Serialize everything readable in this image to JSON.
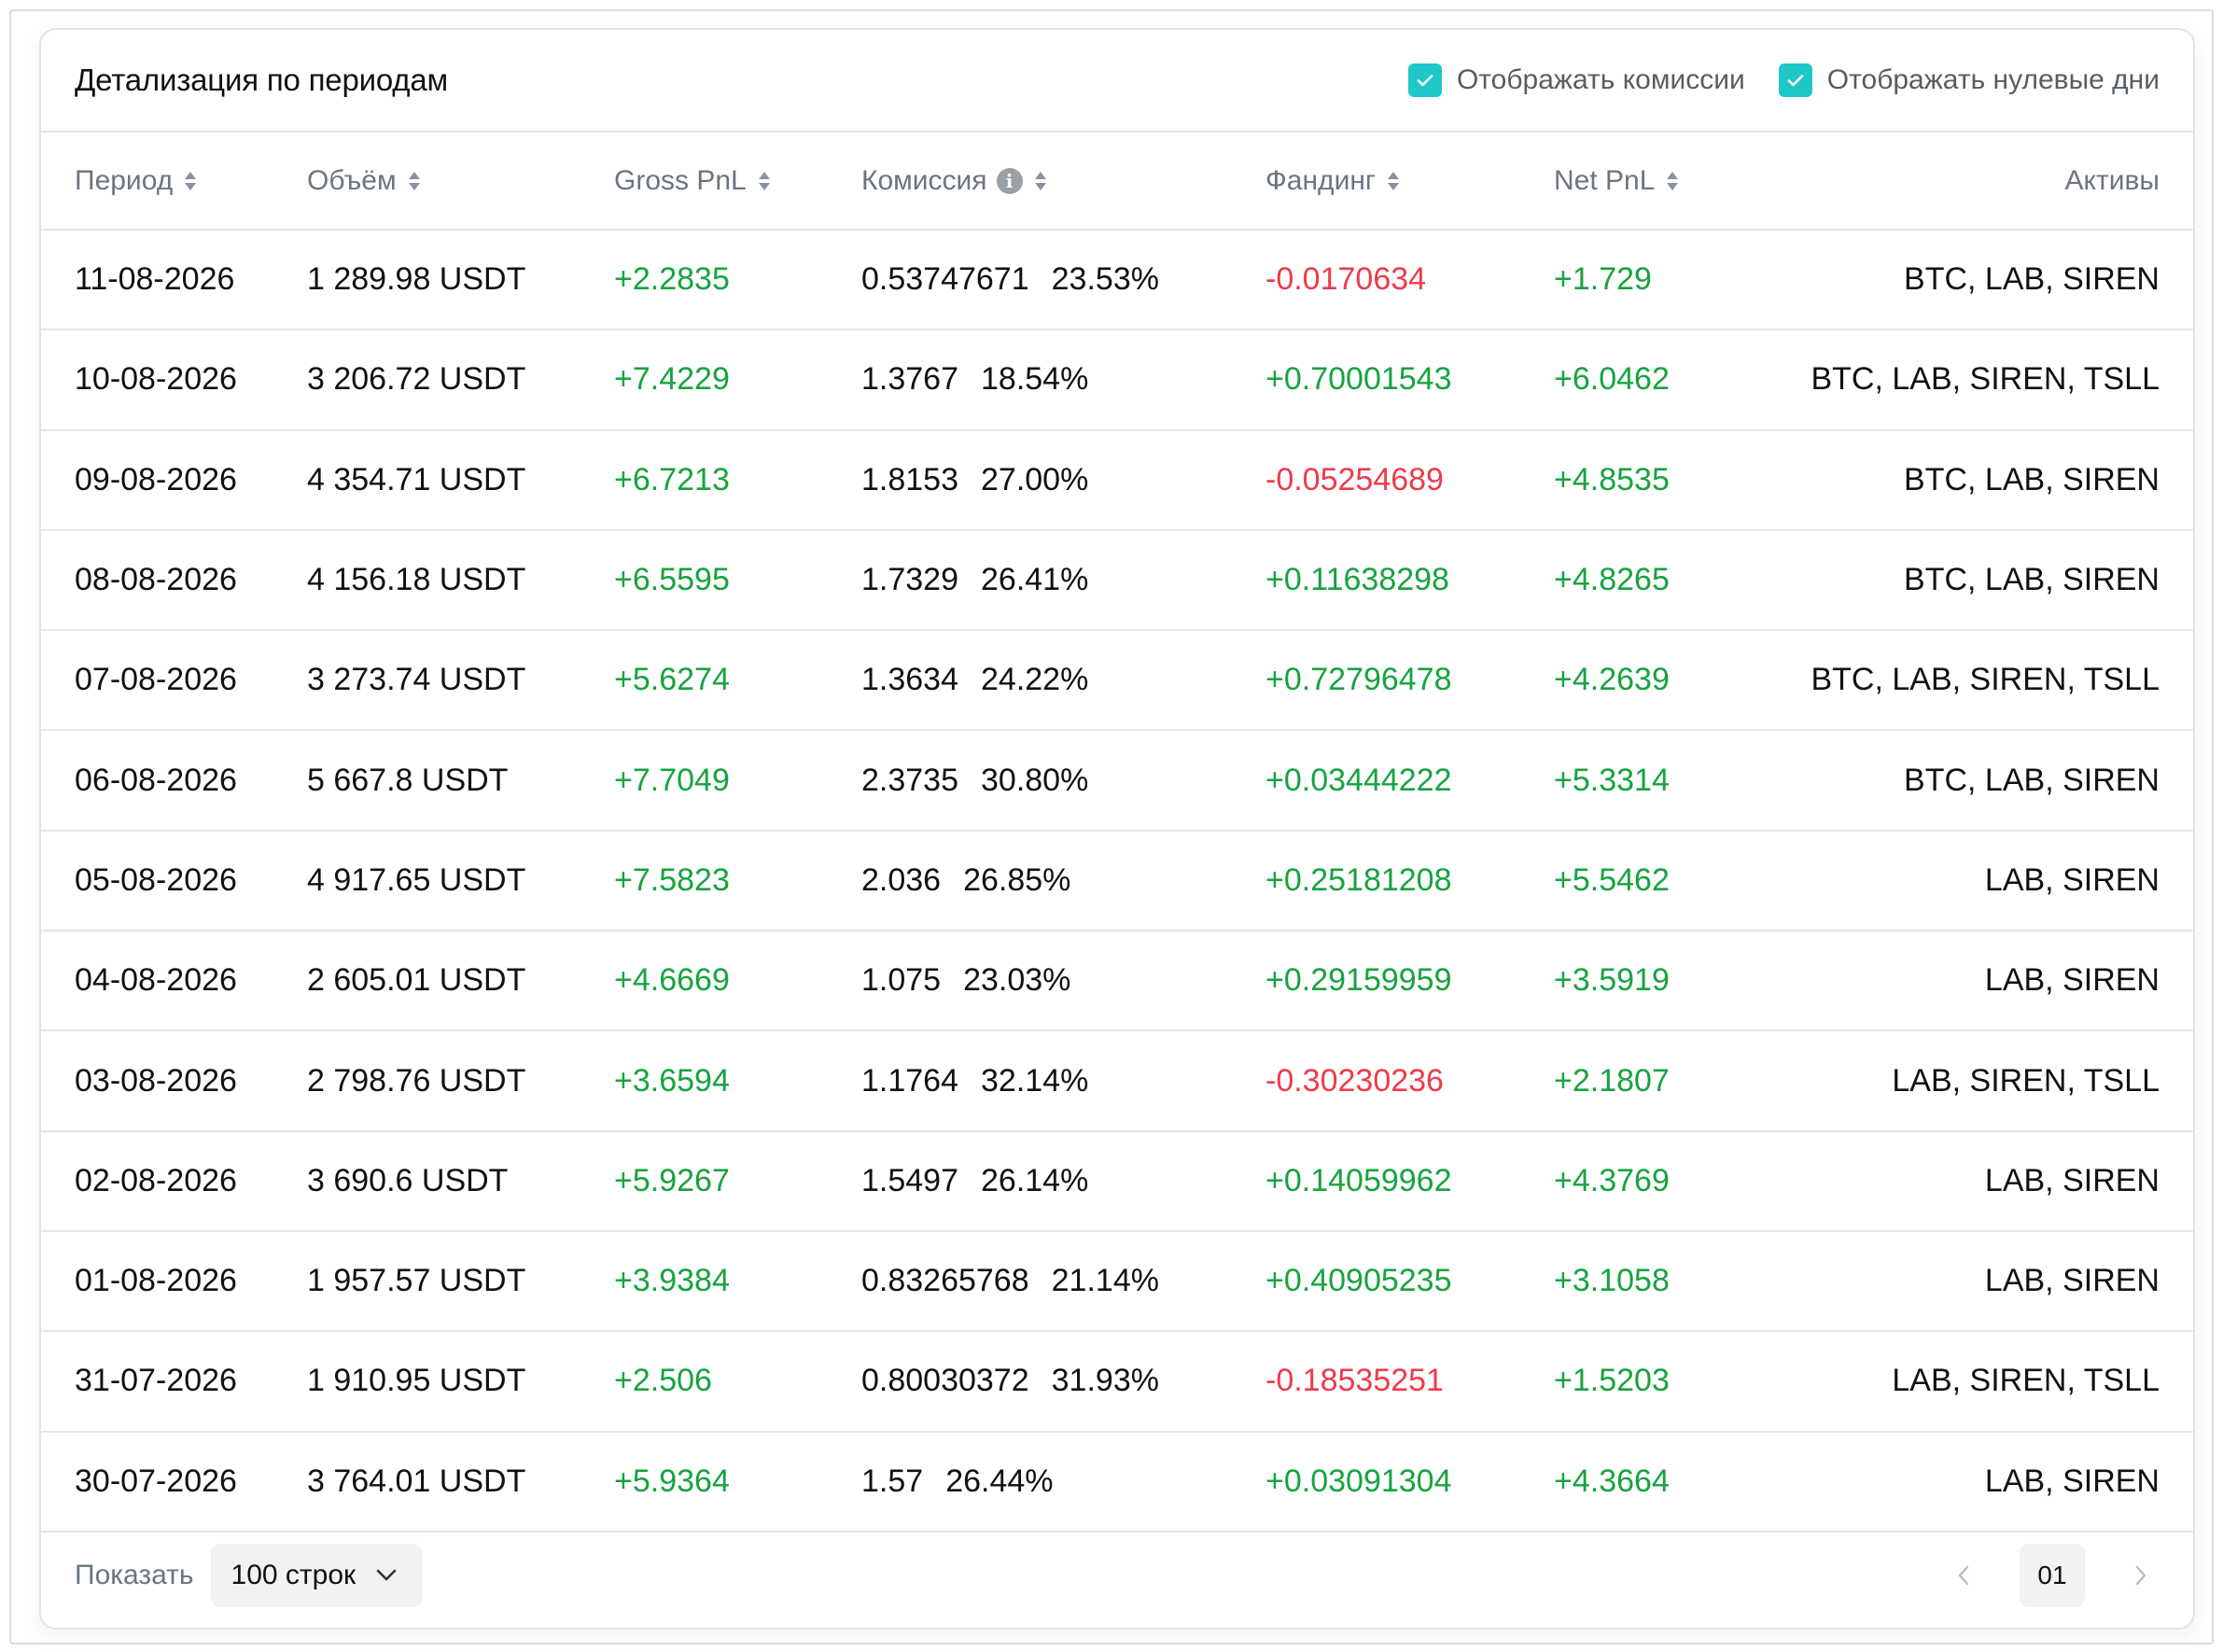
{
  "header": {
    "title": "Детализация по периодам",
    "show_fees_label": "Отображать комиссии",
    "show_zero_days_label": "Отображать нулевые дни",
    "show_fees_checked": true,
    "show_zero_days_checked": true,
    "accent_color": "#1fc7c7"
  },
  "table": {
    "columns": [
      "Период",
      "Объём",
      "Gross PnL",
      "Комиссия",
      "Фандинг",
      "Net PnL",
      "Активы"
    ],
    "rows": [
      {
        "period": "11-08-2026",
        "volume": "1 289.98 USDT",
        "gross": "+2.2835",
        "fee": "0.53747671",
        "fee_pct": "23.53%",
        "funding": "-0.0170634",
        "net": "+1.729",
        "assets": "BTC, LAB, SIREN"
      },
      {
        "period": "10-08-2026",
        "volume": "3 206.72 USDT",
        "gross": "+7.4229",
        "fee": "1.3767",
        "fee_pct": "18.54%",
        "funding": "+0.70001543",
        "net": "+6.0462",
        "assets": "BTC, LAB, SIREN, TSLL"
      },
      {
        "period": "09-08-2026",
        "volume": "4 354.71 USDT",
        "gross": "+6.7213",
        "fee": "1.8153",
        "fee_pct": "27.00%",
        "funding": "-0.05254689",
        "net": "+4.8535",
        "assets": "BTC, LAB, SIREN"
      },
      {
        "period": "08-08-2026",
        "volume": "4 156.18 USDT",
        "gross": "+6.5595",
        "fee": "1.7329",
        "fee_pct": "26.41%",
        "funding": "+0.11638298",
        "net": "+4.8265",
        "assets": "BTC, LAB, SIREN"
      },
      {
        "period": "07-08-2026",
        "volume": "3 273.74 USDT",
        "gross": "+5.6274",
        "fee": "1.3634",
        "fee_pct": "24.22%",
        "funding": "+0.72796478",
        "net": "+4.2639",
        "assets": "BTC, LAB, SIREN, TSLL"
      },
      {
        "period": "06-08-2026",
        "volume": "5 667.8 USDT",
        "gross": "+7.7049",
        "fee": "2.3735",
        "fee_pct": "30.80%",
        "funding": "+0.03444222",
        "net": "+5.3314",
        "assets": "BTC, LAB, SIREN"
      },
      {
        "period": "05-08-2026",
        "volume": "4 917.65 USDT",
        "gross": "+7.5823",
        "fee": "2.036",
        "fee_pct": "26.85%",
        "funding": "+0.25181208",
        "net": "+5.5462",
        "assets": "LAB, SIREN"
      },
      {
        "period": "04-08-2026",
        "volume": "2 605.01 USDT",
        "gross": "+4.6669",
        "fee": "1.075",
        "fee_pct": "23.03%",
        "funding": "+0.29159959",
        "net": "+3.5919",
        "assets": "LAB, SIREN"
      },
      {
        "period": "03-08-2026",
        "volume": "2 798.76 USDT",
        "gross": "+3.6594",
        "fee": "1.1764",
        "fee_pct": "32.14%",
        "funding": "-0.30230236",
        "net": "+2.1807",
        "assets": "LAB, SIREN, TSLL"
      },
      {
        "period": "02-08-2026",
        "volume": "3 690.6 USDT",
        "gross": "+5.9267",
        "fee": "1.5497",
        "fee_pct": "26.14%",
        "funding": "+0.14059962",
        "net": "+4.3769",
        "assets": "LAB, SIREN"
      },
      {
        "period": "01-08-2026",
        "volume": "1 957.57 USDT",
        "gross": "+3.9384",
        "fee": "0.83265768",
        "fee_pct": "21.14%",
        "funding": "+0.40905235",
        "net": "+3.1058",
        "assets": "LAB, SIREN"
      },
      {
        "period": "31-07-2026",
        "volume": "1 910.95 USDT",
        "gross": "+2.506",
        "fee": "0.80030372",
        "fee_pct": "31.93%",
        "funding": "-0.18535251",
        "net": "+1.5203",
        "assets": "LAB, SIREN, TSLL"
      },
      {
        "period": "30-07-2026",
        "volume": "3 764.01 USDT",
        "gross": "+5.9364",
        "fee": "1.57",
        "fee_pct": "26.44%",
        "funding": "+0.03091304",
        "net": "+4.3664",
        "assets": "LAB, SIREN"
      }
    ]
  },
  "footer": {
    "show_label": "Показать",
    "rows_per_page": "100 строк",
    "current_page": "01"
  },
  "colors": {
    "positive": "#17a33f",
    "negative": "#ee3b4b"
  }
}
